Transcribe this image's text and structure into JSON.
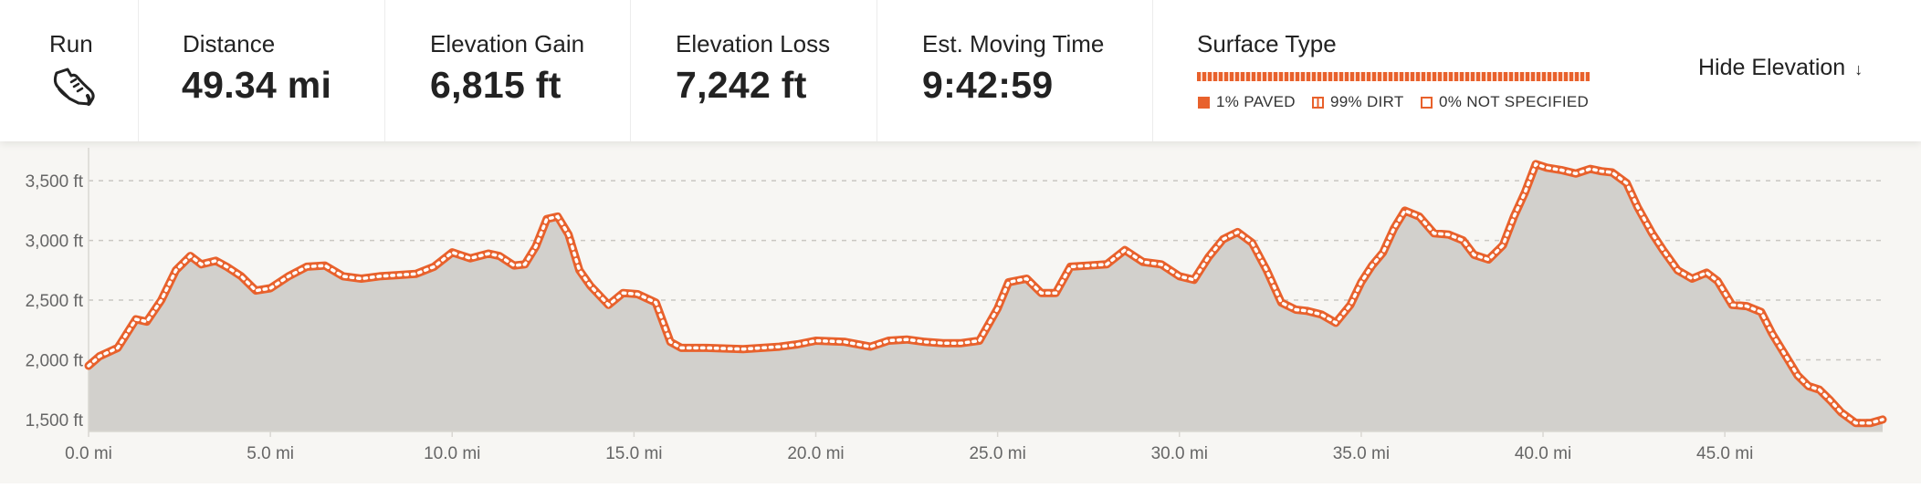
{
  "stats": {
    "activity_label": "Run",
    "distance": {
      "label": "Distance",
      "value": "49.34 mi"
    },
    "elevation_gain": {
      "label": "Elevation Gain",
      "value": "6,815 ft"
    },
    "elevation_loss": {
      "label": "Elevation Loss",
      "value": "7,242 ft"
    },
    "moving_time": {
      "label": "Est. Moving Time",
      "value": "9:42:59"
    }
  },
  "surface": {
    "title": "Surface Type",
    "legend": [
      {
        "key": "paved",
        "label": "1% PAVED"
      },
      {
        "key": "dirt",
        "label": "99% DIRT"
      },
      {
        "key": "unspecified",
        "label": "0% NOT SPECIFIED"
      }
    ]
  },
  "toggle": {
    "label": "Hide Elevation",
    "icon": "arrow-down-icon"
  },
  "colors": {
    "accent": "#e8612c",
    "fill": "#d2d0cc",
    "background": "#f7f6f3"
  },
  "chart_data": {
    "type": "area",
    "x_unit": "mi",
    "y_unit": "ft",
    "xlim": [
      0,
      49.34
    ],
    "ylim": [
      1400,
      3700
    ],
    "x_ticks": [
      0,
      5,
      10,
      15,
      20,
      25,
      30,
      35,
      40,
      45
    ],
    "x_tick_labels": [
      "0.0 mi",
      "5.0 mi",
      "10.0 mi",
      "15.0 mi",
      "20.0 mi",
      "25.0 mi",
      "30.0 mi",
      "35.0 mi",
      "40.0 mi",
      "45.0 mi"
    ],
    "y_ticks": [
      1500,
      2000,
      2500,
      3000,
      3500
    ],
    "y_tick_labels": [
      "1,500 ft",
      "2,000 ft",
      "2,500 ft",
      "3,000 ft",
      "3,500 ft"
    ],
    "grid": true,
    "series": [
      {
        "x": [
          0,
          0.3,
          0.8,
          1.3,
          1.6,
          2.0,
          2.4,
          2.8,
          3.1,
          3.5,
          3.8,
          4.2,
          4.6,
          5.0,
          5.5,
          6.0,
          6.5,
          7.0,
          7.5,
          8.0,
          8.5,
          9.0,
          9.5,
          10.0,
          10.5,
          11.0,
          11.3,
          11.7,
          12.0,
          12.3,
          12.6,
          12.9,
          13.2,
          13.5,
          13.8,
          14.3,
          14.7,
          15.1,
          15.6,
          16.0,
          16.3,
          17.0,
          18.0,
          19.0,
          19.5,
          20.0,
          20.8,
          21.5,
          22.0,
          22.5,
          23.0,
          23.5,
          24.0,
          24.5,
          25.0,
          25.3,
          25.8,
          26.2,
          26.6,
          27.0,
          27.5,
          28.0,
          28.5,
          29.0,
          29.5,
          30.0,
          30.4,
          30.8,
          31.2,
          31.6,
          32.0,
          32.4,
          32.8,
          33.2,
          33.5,
          33.9,
          34.3,
          34.7,
          35.0,
          35.3,
          35.6,
          35.9,
          36.2,
          36.6,
          37.0,
          37.4,
          37.8,
          38.1,
          38.5,
          38.9,
          39.2,
          39.5,
          39.8,
          40.1,
          40.5,
          40.9,
          41.3,
          41.6,
          41.9,
          42.3,
          42.6,
          43.0,
          43.3,
          43.7,
          44.1,
          44.5,
          44.8,
          45.2,
          45.6,
          46.0,
          46.3,
          46.7,
          47.0,
          47.3,
          47.6,
          47.9,
          48.2,
          48.6,
          49.0,
          49.34
        ],
        "y": [
          1950,
          2030,
          2100,
          2340,
          2320,
          2500,
          2750,
          2870,
          2800,
          2830,
          2780,
          2700,
          2580,
          2600,
          2700,
          2780,
          2790,
          2700,
          2680,
          2700,
          2710,
          2720,
          2780,
          2900,
          2850,
          2890,
          2870,
          2790,
          2800,
          2950,
          3180,
          3200,
          3050,
          2750,
          2620,
          2460,
          2560,
          2550,
          2480,
          2150,
          2100,
          2100,
          2090,
          2110,
          2130,
          2160,
          2150,
          2110,
          2160,
          2170,
          2150,
          2140,
          2140,
          2160,
          2430,
          2650,
          2680,
          2560,
          2560,
          2780,
          2790,
          2800,
          2920,
          2820,
          2800,
          2700,
          2670,
          2860,
          3010,
          3070,
          2980,
          2750,
          2480,
          2420,
          2410,
          2380,
          2310,
          2460,
          2650,
          2790,
          2900,
          3100,
          3250,
          3200,
          3060,
          3050,
          3000,
          2880,
          2840,
          2960,
          3200,
          3400,
          3640,
          3610,
          3590,
          3560,
          3600,
          3580,
          3570,
          3480,
          3280,
          3060,
          2920,
          2750,
          2680,
          2730,
          2660,
          2460,
          2450,
          2400,
          2220,
          2020,
          1870,
          1780,
          1750,
          1660,
          1560,
          1470,
          1470,
          1500
        ]
      }
    ]
  }
}
